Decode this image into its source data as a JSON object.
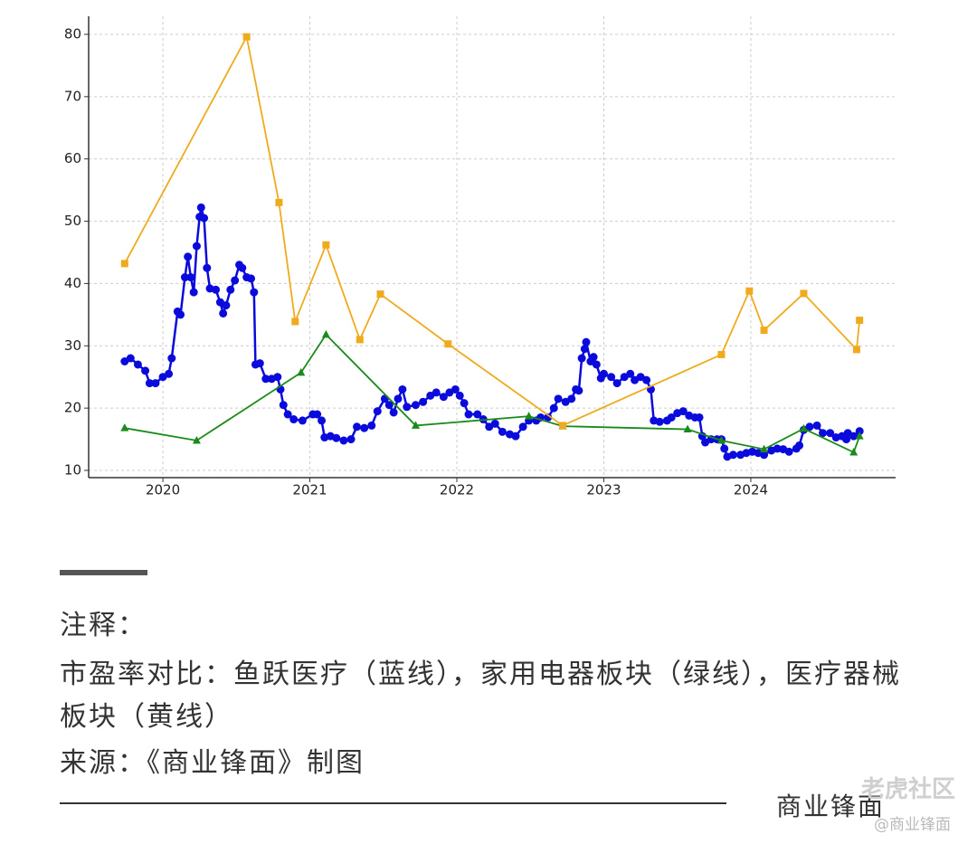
{
  "chart_data": {
    "type": "line",
    "xlim": [
      2019.495,
      2024.985
    ],
    "ylim": [
      8.84,
      82.9
    ],
    "xticks": [
      2020,
      2021,
      2022,
      2023,
      2024
    ],
    "yticks": [
      10,
      20,
      30,
      40,
      50,
      60,
      70,
      80
    ],
    "grid": true,
    "series": [
      {
        "color": "#0a0adc",
        "marker": "circle",
        "x": [
          2019.74,
          2019.78,
          2019.83,
          2019.88,
          2019.91,
          2019.95,
          2020.0,
          2020.04,
          2020.06,
          2020.1,
          2020.12,
          2020.15,
          2020.17,
          2020.19,
          2020.21,
          2020.23,
          2020.25,
          2020.26,
          2020.28,
          2020.3,
          2020.32,
          2020.36,
          2020.39,
          2020.41,
          2020.43,
          2020.46,
          2020.49,
          2020.52,
          2020.54,
          2020.57,
          2020.6,
          2020.62,
          2020.63,
          2020.66,
          2020.7,
          2020.74,
          2020.78,
          2020.8,
          2020.82,
          2020.85,
          2020.89,
          2020.95,
          2021.02,
          2021.05,
          2021.08,
          2021.1,
          2021.14,
          2021.18,
          2021.23,
          2021.28,
          2021.32,
          2021.37,
          2021.42,
          2021.46,
          2021.51,
          2021.54,
          2021.57,
          2021.6,
          2021.63,
          2021.66,
          2021.72,
          2021.77,
          2021.82,
          2021.86,
          2021.91,
          2021.95,
          2021.99,
          2022.02,
          2022.05,
          2022.08,
          2022.14,
          2022.18,
          2022.22,
          2022.26,
          2022.31,
          2022.36,
          2022.4,
          2022.45,
          2022.49,
          2022.54,
          2022.57,
          2022.62,
          2022.66,
          2022.69,
          2022.74,
          2022.78,
          2022.81,
          2022.83,
          2022.85,
          2022.87,
          2022.88,
          2022.91,
          2022.93,
          2022.95,
          2022.98,
          2023.0,
          2023.05,
          2023.09,
          2023.14,
          2023.18,
          2023.21,
          2023.25,
          2023.29,
          2023.32,
          2023.34,
          2023.38,
          2023.43,
          2023.46,
          2023.5,
          2023.54,
          2023.58,
          2023.62,
          2023.65,
          2023.67,
          2023.69,
          2023.73,
          2023.77,
          2023.8,
          2023.82,
          2023.84,
          2023.88,
          2023.93,
          2023.97,
          2024.01,
          2024.05,
          2024.09,
          2024.14,
          2024.18,
          2024.22,
          2024.26,
          2024.31,
          2024.33,
          2024.36,
          2024.4,
          2024.45,
          2024.49,
          2024.54,
          2024.58,
          2024.62,
          2024.65,
          2024.66,
          2024.7,
          2024.74
        ],
        "values": [
          27.5,
          28,
          27,
          26,
          24,
          24,
          25,
          25.5,
          28,
          35.5,
          35,
          41,
          44.3,
          41,
          38.6,
          46,
          50.7,
          52.2,
          50.5,
          42.5,
          39.2,
          39,
          37,
          35.2,
          36.5,
          39,
          40.5,
          43,
          42.5,
          41,
          40.8,
          38.6,
          27,
          27.2,
          24.7,
          24.7,
          25,
          23,
          20.5,
          19,
          18.2,
          18,
          19,
          19,
          18,
          15.3,
          15.5,
          15.2,
          14.8,
          15,
          17,
          16.8,
          17.2,
          19.5,
          21.5,
          20.5,
          19.3,
          21.5,
          23,
          20.2,
          20.5,
          21,
          22,
          22.5,
          21.8,
          22.5,
          23,
          22,
          20.8,
          19,
          19,
          18.2,
          17,
          17.5,
          16.2,
          15.8,
          15.5,
          17,
          18,
          18,
          18.5,
          18.5,
          20,
          21.5,
          21,
          21.5,
          23,
          22.8,
          28,
          29.5,
          30.6,
          27.5,
          28.2,
          27,
          24.8,
          25.5,
          25,
          24,
          25,
          25.5,
          24.5,
          25,
          24.5,
          23,
          18,
          17.8,
          18,
          18.5,
          19.2,
          19.5,
          18.8,
          18.5,
          18.5,
          15.5,
          14.5,
          15,
          15,
          15,
          13.5,
          12.2,
          12.5,
          12.5,
          12.8,
          13,
          12.8,
          12.5,
          13.2,
          13.5,
          13.4,
          13,
          13.5,
          14,
          16.5,
          17,
          17.2,
          16,
          16,
          15.3,
          15.5,
          15,
          16,
          15.5,
          16.3
        ]
      },
      {
        "color": "#1a8a1a",
        "marker": "triangle",
        "x": [
          2019.74,
          2020.23,
          2020.94,
          2021.11,
          2021.72,
          2022.49,
          2022.72,
          2023.57,
          2023.8,
          2024.09,
          2024.36,
          2024.7,
          2024.74
        ],
        "values": [
          16.8,
          14.8,
          25.7,
          31.8,
          17.2,
          18.7,
          17.1,
          16.6,
          14.8,
          13.4,
          16.7,
          12.9,
          15.5
        ]
      },
      {
        "color": "#f0aa1e",
        "marker": "square",
        "x": [
          2019.74,
          2020.57,
          2020.79,
          2020.9,
          2021.11,
          2021.34,
          2021.48,
          2021.94,
          2022.72,
          2023.8,
          2023.99,
          2024.09,
          2024.36,
          2024.72,
          2024.74
        ],
        "values": [
          43.2,
          79.6,
          53,
          33.9,
          46.2,
          31,
          38.3,
          30.3,
          17.2,
          28.6,
          38.8,
          32.5,
          38.4,
          29.4,
          34.1
        ]
      }
    ]
  },
  "notes": {
    "heading": "注释：",
    "description": "市盈率对比：鱼跃医疗（蓝线），家用电器板块（绿线），医疗器械板块（黄线）",
    "source": "来源：《商业锋面》制图",
    "brand": "商业锋面",
    "watermark": "老虎社区",
    "watermark_handle": "@商业锋面"
  }
}
